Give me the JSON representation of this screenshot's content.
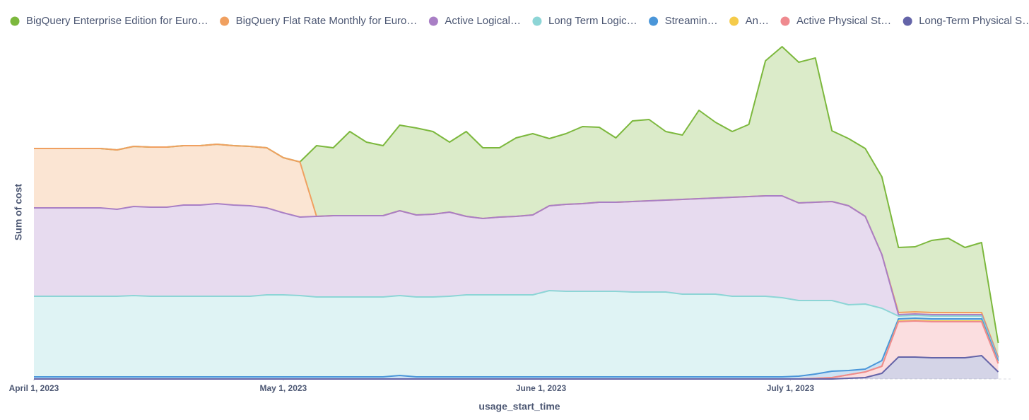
{
  "chart_data": {
    "type": "stacked_area",
    "x_label": "usage_start_time",
    "y_label": "Sum of cost",
    "x": [
      "2023-04-01",
      "2023-04-03",
      "2023-04-05",
      "2023-04-07",
      "2023-04-09",
      "2023-04-11",
      "2023-04-13",
      "2023-04-15",
      "2023-04-17",
      "2023-04-19",
      "2023-04-21",
      "2023-04-23",
      "2023-04-25",
      "2023-04-27",
      "2023-04-29",
      "2023-05-01",
      "2023-05-03",
      "2023-05-05",
      "2023-05-07",
      "2023-05-09",
      "2023-05-11",
      "2023-05-13",
      "2023-05-15",
      "2023-05-17",
      "2023-05-19",
      "2023-05-21",
      "2023-05-23",
      "2023-05-25",
      "2023-05-27",
      "2023-05-29",
      "2023-05-31",
      "2023-06-02",
      "2023-06-04",
      "2023-06-06",
      "2023-06-08",
      "2023-06-10",
      "2023-06-12",
      "2023-06-14",
      "2023-06-16",
      "2023-06-18",
      "2023-06-20",
      "2023-06-22",
      "2023-06-24",
      "2023-06-26",
      "2023-06-28",
      "2023-06-30",
      "2023-07-02",
      "2023-07-04",
      "2023-07-06",
      "2023-07-08",
      "2023-07-10",
      "2023-07-12",
      "2023-07-14",
      "2023-07-16",
      "2023-07-18",
      "2023-07-20",
      "2023-07-22",
      "2023-07-24",
      "2023-07-26"
    ],
    "xlim": [
      "2023-04-01",
      "2023-07-28"
    ],
    "xticks": [
      {
        "value": "2023-04-01",
        "label": "April 1, 2023"
      },
      {
        "value": "2023-05-01",
        "label": "May 1, 2023"
      },
      {
        "value": "2023-06-01",
        "label": "June 1, 2023"
      },
      {
        "value": "2023-07-01",
        "label": "July 1, 2023"
      }
    ],
    "ylim": [
      0,
      500
    ],
    "legend_position": "top",
    "series": [
      {
        "name": "BigQuery Enterprise Edition for Euro…",
        "color": "#7cb83d",
        "values": [
          0,
          0,
          0,
          0,
          0,
          0,
          0,
          0,
          0,
          0,
          0,
          0,
          0,
          0,
          0,
          0,
          0,
          100,
          96,
          119,
          104,
          99,
          121,
          123,
          117,
          99,
          120,
          100,
          98,
          111,
          115,
          95,
          100,
          109,
          106,
          91,
          114,
          115,
          97,
          91,
          125,
          107,
          93,
          102,
          191,
          211,
          199,
          204,
          100,
          95,
          96,
          110,
          92,
          92,
          102,
          105,
          92,
          99,
          20
        ]
      },
      {
        "name": "BigQuery Flat Rate Monthly for Euro…",
        "color": "#f0a060",
        "values": [
          84,
          84,
          84,
          84,
          84,
          84,
          85,
          85,
          85,
          84,
          84,
          84,
          84,
          84,
          85,
          78,
          78,
          0,
          0,
          0,
          0,
          0,
          0,
          0,
          0,
          0,
          0,
          0,
          0,
          0,
          0,
          0,
          0,
          0,
          0,
          0,
          0,
          0,
          0,
          0,
          0,
          0,
          0,
          0,
          0,
          0,
          0,
          0,
          0,
          0,
          0,
          0,
          3,
          3,
          3,
          3,
          3,
          3,
          2
        ]
      },
      {
        "name": "Active Logical…",
        "color": "#a97fc5",
        "values": [
          125,
          125,
          125,
          125,
          125,
          123,
          126,
          126,
          126,
          129,
          129,
          131,
          129,
          128,
          123,
          116,
          111,
          114,
          115,
          115,
          115,
          115,
          120,
          116,
          117,
          119,
          111,
          108,
          110,
          111,
          113,
          120,
          123,
          124,
          126,
          126,
          128,
          129,
          130,
          134,
          135,
          136,
          140,
          141,
          142,
          144,
          138,
          139,
          140,
          140,
          124,
          76,
          2,
          2,
          2,
          2,
          2,
          2,
          2
        ]
      },
      {
        "name": "Long Term Logic…",
        "color": "#8dd5d6",
        "values": [
          114,
          114,
          114,
          114,
          114,
          114,
          115,
          114,
          114,
          114,
          114,
          114,
          114,
          114,
          116,
          116,
          115,
          113,
          113,
          113,
          113,
          113,
          113,
          113,
          113,
          114,
          116,
          116,
          116,
          116,
          116,
          122,
          121,
          121,
          121,
          121,
          120,
          120,
          120,
          117,
          117,
          117,
          114,
          114,
          114,
          112,
          107,
          104,
          100,
          93,
          92,
          74,
          4,
          4,
          4,
          4,
          4,
          4,
          2
        ]
      },
      {
        "name": "Streamin…",
        "color": "#4a96d9",
        "values": [
          3,
          3,
          3,
          3,
          3,
          3,
          3,
          3,
          3,
          3,
          3,
          3,
          3,
          3,
          3,
          3,
          3,
          3,
          3,
          3,
          3,
          3,
          5,
          3,
          3,
          3,
          3,
          3,
          3,
          3,
          3,
          3,
          3,
          3,
          3,
          3,
          3,
          3,
          3,
          3,
          3,
          3,
          3,
          3,
          3,
          3,
          4,
          6,
          9,
          6,
          4,
          8,
          3,
          3,
          3,
          3,
          3,
          3,
          3
        ]
      },
      {
        "name": "An…",
        "color": "#f5cb4a",
        "values": [
          0,
          0,
          0,
          0,
          0,
          0,
          0,
          0,
          0,
          0,
          0,
          0,
          0,
          0,
          0,
          0,
          0,
          0,
          0,
          0,
          0,
          0,
          0,
          0,
          0,
          0,
          0,
          0,
          0,
          0,
          0,
          0,
          0,
          0,
          0,
          0,
          0,
          0,
          0,
          0,
          0,
          0,
          0,
          0,
          0,
          0,
          0,
          0,
          0,
          0,
          0,
          0,
          1,
          1,
          1,
          1,
          1,
          1,
          0
        ]
      },
      {
        "name": "Active Physical St…",
        "color": "#ef8a8f",
        "values": [
          0,
          0,
          0,
          0,
          0,
          0,
          0,
          0,
          0,
          0,
          0,
          0,
          0,
          0,
          0,
          0,
          0,
          0,
          0,
          0,
          0,
          0,
          0,
          0,
          0,
          0,
          0,
          0,
          0,
          0,
          0,
          0,
          0,
          0,
          0,
          0,
          0,
          0,
          0,
          0,
          0,
          0,
          0,
          0,
          0,
          0,
          0,
          1,
          2,
          5,
          8,
          10,
          50,
          51,
          51,
          51,
          51,
          48,
          12
        ]
      },
      {
        "name": "Long-Term Physical S…",
        "color": "#6464a8",
        "values": [
          0,
          0,
          0,
          0,
          0,
          0,
          0,
          0,
          0,
          0,
          0,
          0,
          0,
          0,
          0,
          0,
          0,
          0,
          0,
          0,
          0,
          0,
          0,
          0,
          0,
          0,
          0,
          0,
          0,
          0,
          0,
          0,
          0,
          0,
          0,
          0,
          0,
          0,
          0,
          0,
          0,
          0,
          0,
          0,
          0,
          0,
          0,
          0,
          0,
          1,
          2,
          8,
          31,
          31,
          30,
          30,
          30,
          33,
          10
        ]
      }
    ]
  }
}
